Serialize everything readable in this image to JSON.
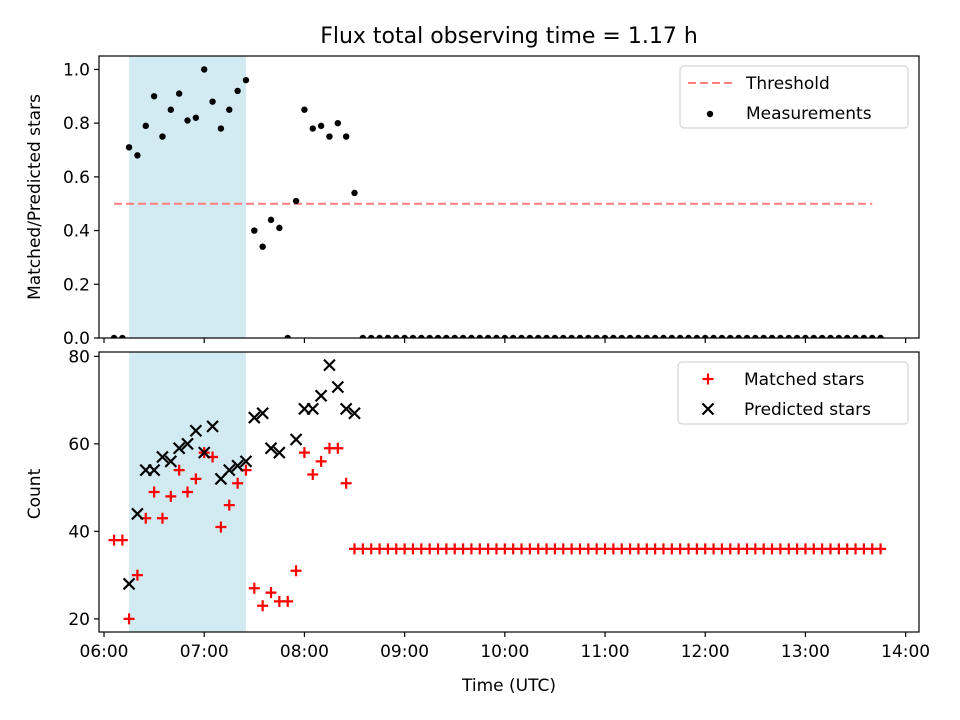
{
  "chart_data": [
    {
      "type": "scatter",
      "title": "Flux total observing time = 1.17 h",
      "xlabel": "",
      "ylabel": "Matched/Predicted stars",
      "xlim": [
        "05:57",
        "14:08"
      ],
      "ylim": [
        0,
        1.05
      ],
      "yticks": [
        "0.0",
        "0.2",
        "0.4",
        "0.6",
        "0.8",
        "1.0"
      ],
      "highlight_span": [
        "06:15",
        "07:25"
      ],
      "highlight_color": "#add8e6",
      "legend_position": "top-right",
      "threshold": {
        "name": "Threshold",
        "value": 0.5,
        "x_range": [
          "06:06",
          "13:40"
        ],
        "color": "#ff7f7f"
      },
      "series": [
        {
          "name": "Measurements",
          "color": "#000000",
          "marker": "dot",
          "points": [
            [
              "06:06",
              0.0
            ],
            [
              "06:11",
              0.0
            ],
            [
              "06:15",
              0.71
            ],
            [
              "06:20",
              0.68
            ],
            [
              "06:25",
              0.79
            ],
            [
              "06:30",
              0.9
            ],
            [
              "06:35",
              0.75
            ],
            [
              "06:40",
              0.85
            ],
            [
              "06:45",
              0.91
            ],
            [
              "06:50",
              0.81
            ],
            [
              "06:55",
              0.82
            ],
            [
              "07:00",
              1.0
            ],
            [
              "07:05",
              0.88
            ],
            [
              "07:10",
              0.78
            ],
            [
              "07:15",
              0.85
            ],
            [
              "07:20",
              0.92
            ],
            [
              "07:25",
              0.96
            ],
            [
              "07:30",
              0.4
            ],
            [
              "07:35",
              0.34
            ],
            [
              "07:40",
              0.44
            ],
            [
              "07:45",
              0.41
            ],
            [
              "07:50",
              0.0
            ],
            [
              "07:55",
              0.51
            ],
            [
              "08:00",
              0.85
            ],
            [
              "08:05",
              0.78
            ],
            [
              "08:10",
              0.79
            ],
            [
              "08:15",
              0.75
            ],
            [
              "08:20",
              0.8
            ],
            [
              "08:25",
              0.75
            ],
            [
              "08:30",
              0.54
            ],
            [
              "08:35",
              0.0
            ],
            [
              "08:40",
              0.0
            ],
            [
              "08:45",
              0.0
            ],
            [
              "08:50",
              0.0
            ],
            [
              "08:55",
              0.0
            ],
            [
              "09:00",
              0.0
            ],
            [
              "09:05",
              0.0
            ],
            [
              "09:10",
              0.0
            ],
            [
              "09:15",
              0.0
            ],
            [
              "09:20",
              0.0
            ],
            [
              "09:25",
              0.0
            ],
            [
              "09:30",
              0.0
            ],
            [
              "09:35",
              0.0
            ],
            [
              "09:40",
              0.0
            ],
            [
              "09:45",
              0.0
            ],
            [
              "09:50",
              0.0
            ],
            [
              "09:55",
              0.0
            ],
            [
              "10:00",
              0.0
            ],
            [
              "10:05",
              0.0
            ],
            [
              "10:10",
              0.0
            ],
            [
              "10:15",
              0.0
            ],
            [
              "10:20",
              0.0
            ],
            [
              "10:25",
              0.0
            ],
            [
              "10:30",
              0.0
            ],
            [
              "10:35",
              0.0
            ],
            [
              "10:40",
              0.0
            ],
            [
              "10:45",
              0.0
            ],
            [
              "10:50",
              0.0
            ],
            [
              "10:55",
              0.0
            ],
            [
              "11:00",
              0.0
            ],
            [
              "11:05",
              0.0
            ],
            [
              "11:10",
              0.0
            ],
            [
              "11:15",
              0.0
            ],
            [
              "11:20",
              0.0
            ],
            [
              "11:25",
              0.0
            ],
            [
              "11:30",
              0.0
            ],
            [
              "11:35",
              0.0
            ],
            [
              "11:40",
              0.0
            ],
            [
              "11:45",
              0.0
            ],
            [
              "11:50",
              0.0
            ],
            [
              "11:55",
              0.0
            ],
            [
              "12:00",
              0.0
            ],
            [
              "12:05",
              0.0
            ],
            [
              "12:10",
              0.0
            ],
            [
              "12:15",
              0.0
            ],
            [
              "12:20",
              0.0
            ],
            [
              "12:25",
              0.0
            ],
            [
              "12:30",
              0.0
            ],
            [
              "12:35",
              0.0
            ],
            [
              "12:40",
              0.0
            ],
            [
              "12:45",
              0.0
            ],
            [
              "12:50",
              0.0
            ],
            [
              "12:55",
              0.0
            ],
            [
              "13:00",
              0.0
            ],
            [
              "13:05",
              0.0
            ],
            [
              "13:10",
              0.0
            ],
            [
              "13:15",
              0.0
            ],
            [
              "13:20",
              0.0
            ],
            [
              "13:25",
              0.0
            ],
            [
              "13:30",
              0.0
            ],
            [
              "13:35",
              0.0
            ],
            [
              "13:40",
              0.0
            ],
            [
              "13:45",
              0.0
            ]
          ]
        }
      ]
    },
    {
      "type": "scatter",
      "title": "",
      "xlabel": "Time (UTC)",
      "ylabel": "Count",
      "xlim": [
        "05:57",
        "14:08"
      ],
      "xticks": [
        "06:00",
        "07:00",
        "08:00",
        "09:00",
        "10:00",
        "11:00",
        "12:00",
        "13:00",
        "14:00"
      ],
      "ylim": [
        17,
        81
      ],
      "yticks": [
        "20",
        "40",
        "60",
        "80"
      ],
      "highlight_span": [
        "06:15",
        "07:25"
      ],
      "highlight_color": "#add8e6",
      "legend_position": "top-right",
      "series": [
        {
          "name": "Matched stars",
          "color": "#ff0000",
          "marker": "plus",
          "points": [
            [
              "06:06",
              38
            ],
            [
              "06:11",
              38
            ],
            [
              "06:15",
              20
            ],
            [
              "06:20",
              30
            ],
            [
              "06:25",
              43
            ],
            [
              "06:30",
              49
            ],
            [
              "06:35",
              43
            ],
            [
              "06:40",
              48
            ],
            [
              "06:45",
              54
            ],
            [
              "06:50",
              49
            ],
            [
              "06:55",
              52
            ],
            [
              "07:00",
              58
            ],
            [
              "07:05",
              57
            ],
            [
              "07:10",
              41
            ],
            [
              "07:15",
              46
            ],
            [
              "07:20",
              51
            ],
            [
              "07:25",
              54
            ],
            [
              "07:30",
              27
            ],
            [
              "07:35",
              23
            ],
            [
              "07:40",
              26
            ],
            [
              "07:45",
              24
            ],
            [
              "07:50",
              24
            ],
            [
              "07:55",
              31
            ],
            [
              "08:00",
              58
            ],
            [
              "08:05",
              53
            ],
            [
              "08:10",
              56
            ],
            [
              "08:15",
              59
            ],
            [
              "08:20",
              59
            ],
            [
              "08:25",
              51
            ],
            [
              "08:30",
              36
            ],
            [
              "08:35",
              36
            ],
            [
              "08:40",
              36
            ],
            [
              "08:45",
              36
            ],
            [
              "08:50",
              36
            ],
            [
              "08:55",
              36
            ],
            [
              "09:00",
              36
            ],
            [
              "09:05",
              36
            ],
            [
              "09:10",
              36
            ],
            [
              "09:15",
              36
            ],
            [
              "09:20",
              36
            ],
            [
              "09:25",
              36
            ],
            [
              "09:30",
              36
            ],
            [
              "09:35",
              36
            ],
            [
              "09:40",
              36
            ],
            [
              "09:45",
              36
            ],
            [
              "09:50",
              36
            ],
            [
              "09:55",
              36
            ],
            [
              "10:00",
              36
            ],
            [
              "10:05",
              36
            ],
            [
              "10:10",
              36
            ],
            [
              "10:15",
              36
            ],
            [
              "10:20",
              36
            ],
            [
              "10:25",
              36
            ],
            [
              "10:30",
              36
            ],
            [
              "10:35",
              36
            ],
            [
              "10:40",
              36
            ],
            [
              "10:45",
              36
            ],
            [
              "10:50",
              36
            ],
            [
              "10:55",
              36
            ],
            [
              "11:00",
              36
            ],
            [
              "11:05",
              36
            ],
            [
              "11:10",
              36
            ],
            [
              "11:15",
              36
            ],
            [
              "11:20",
              36
            ],
            [
              "11:25",
              36
            ],
            [
              "11:30",
              36
            ],
            [
              "11:35",
              36
            ],
            [
              "11:40",
              36
            ],
            [
              "11:45",
              36
            ],
            [
              "11:50",
              36
            ],
            [
              "11:55",
              36
            ],
            [
              "12:00",
              36
            ],
            [
              "12:05",
              36
            ],
            [
              "12:10",
              36
            ],
            [
              "12:15",
              36
            ],
            [
              "12:20",
              36
            ],
            [
              "12:25",
              36
            ],
            [
              "12:30",
              36
            ],
            [
              "12:35",
              36
            ],
            [
              "12:40",
              36
            ],
            [
              "12:45",
              36
            ],
            [
              "12:50",
              36
            ],
            [
              "12:55",
              36
            ],
            [
              "13:00",
              36
            ],
            [
              "13:05",
              36
            ],
            [
              "13:10",
              36
            ],
            [
              "13:15",
              36
            ],
            [
              "13:20",
              36
            ],
            [
              "13:25",
              36
            ],
            [
              "13:30",
              36
            ],
            [
              "13:35",
              36
            ],
            [
              "13:40",
              36
            ],
            [
              "13:45",
              36
            ]
          ]
        },
        {
          "name": "Predicted stars",
          "color": "#000000",
          "marker": "x",
          "points": [
            [
              "06:15",
              28
            ],
            [
              "06:20",
              44
            ],
            [
              "06:25",
              54
            ],
            [
              "06:30",
              54
            ],
            [
              "06:35",
              57
            ],
            [
              "06:40",
              56
            ],
            [
              "06:45",
              59
            ],
            [
              "06:50",
              60
            ],
            [
              "06:55",
              63
            ],
            [
              "07:00",
              58
            ],
            [
              "07:05",
              64
            ],
            [
              "07:10",
              52
            ],
            [
              "07:15",
              54
            ],
            [
              "07:20",
              55
            ],
            [
              "07:25",
              56
            ],
            [
              "07:30",
              66
            ],
            [
              "07:35",
              67
            ],
            [
              "07:40",
              59
            ],
            [
              "07:45",
              58
            ],
            [
              "07:55",
              61
            ],
            [
              "08:00",
              68
            ],
            [
              "08:05",
              68
            ],
            [
              "08:10",
              71
            ],
            [
              "08:15",
              78
            ],
            [
              "08:20",
              73
            ],
            [
              "08:25",
              68
            ],
            [
              "08:30",
              67
            ]
          ]
        }
      ]
    }
  ]
}
